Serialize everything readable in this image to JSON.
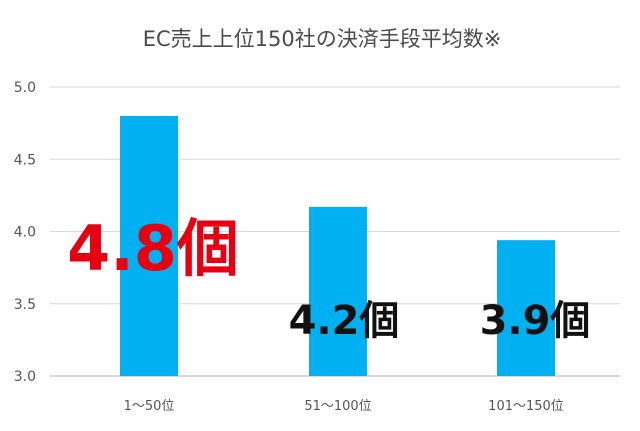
{
  "chart_data": {
    "type": "bar",
    "title": "EC売上上位150社の決済手段平均数※",
    "categories": [
      "1～50位",
      "51～100位",
      "101～150位"
    ],
    "values": [
      4.8,
      4.17,
      3.94
    ],
    "data_labels": [
      "4.8個",
      "4.2個",
      "3.9個"
    ],
    "yticks": [
      "3.0",
      "3.5",
      "4.0",
      "4.5",
      "5.0"
    ],
    "ylim": [
      3.0,
      5.0
    ],
    "grid": true,
    "colors": {
      "bar": "#00b0f0",
      "highlight_label": "#e60012",
      "label": "#111111"
    }
  }
}
